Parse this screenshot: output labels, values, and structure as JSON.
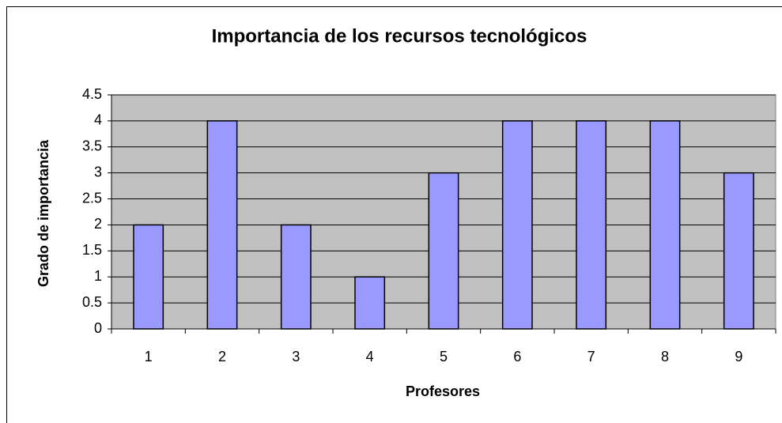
{
  "chart_data": {
    "type": "bar",
    "title": "Importancia de los recursos tecnológicos",
    "x_label": "Profesores",
    "y_label": "Grado de importancia",
    "categories": [
      "1",
      "2",
      "3",
      "4",
      "5",
      "6",
      "7",
      "8",
      "9"
    ],
    "values": [
      2,
      4,
      2,
      1,
      3,
      4,
      4,
      4,
      3
    ],
    "color": "#9999ff",
    "ylim": [
      0,
      4.5
    ],
    "yticks": [
      0,
      0.5,
      1,
      1.5,
      2,
      2.5,
      3,
      3.5,
      4,
      4.5
    ],
    "grid": true
  }
}
